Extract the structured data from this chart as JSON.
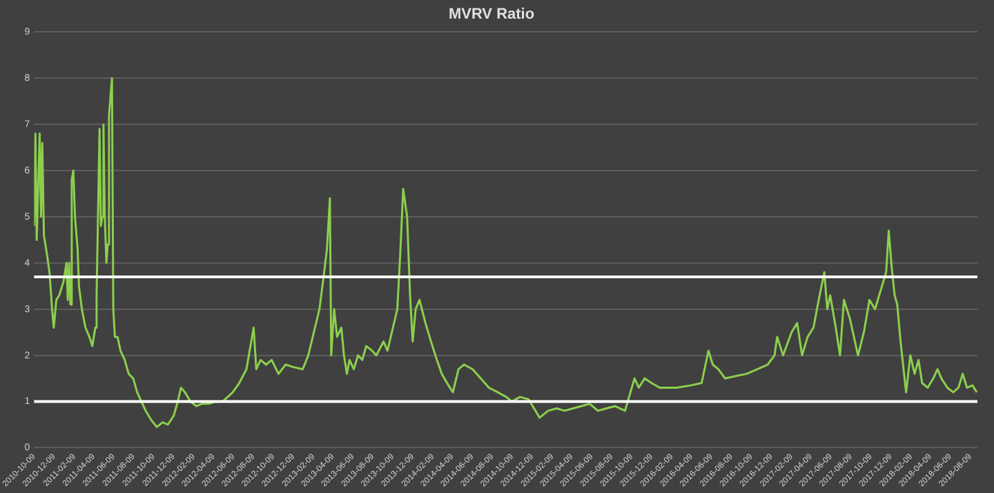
{
  "chart_data": {
    "type": "line",
    "title": "MVRV Ratio",
    "x": [
      "2010-10-09",
      "2010-10-13",
      "2010-10-17",
      "2010-10-26",
      "2010-10-30",
      "2010-11-03",
      "2010-11-08",
      "2010-11-17",
      "2010-11-25",
      "2010-12-03",
      "2010-12-08",
      "2010-12-16",
      "2010-12-25",
      "2011-01-07",
      "2011-01-16",
      "2011-01-20",
      "2011-01-24",
      "2011-01-28",
      "2011-02-01",
      "2011-02-06",
      "2011-02-11",
      "2011-02-19",
      "2011-02-23",
      "2011-03-04",
      "2011-03-15",
      "2011-03-27",
      "2011-04-05",
      "2011-04-14",
      "2011-04-18",
      "2011-04-27",
      "2011-05-01",
      "2011-05-05",
      "2011-05-09",
      "2011-05-13",
      "2011-05-18",
      "2011-05-22",
      "2011-05-26",
      "2011-06-04",
      "2011-06-08",
      "2011-06-13",
      "2011-06-21",
      "2011-06-30",
      "2011-07-13",
      "2011-07-25",
      "2011-08-08",
      "2011-08-20",
      "2011-09-02",
      "2011-09-15",
      "2011-10-02",
      "2011-10-19",
      "2011-11-06",
      "2011-11-22",
      "2011-12-10",
      "2011-12-22",
      "2012-01-01",
      "2012-01-13",
      "2012-01-30",
      "2012-02-17",
      "2012-03-05",
      "2012-03-25",
      "2012-04-16",
      "2012-05-07",
      "2012-06-07",
      "2012-06-27",
      "2012-07-19",
      "2012-08-10",
      "2012-08-18",
      "2012-08-31",
      "2012-09-17",
      "2012-10-04",
      "2012-10-25",
      "2012-11-16",
      "2012-12-07",
      "2013-01-07",
      "2013-01-24",
      "2013-02-10",
      "2013-02-27",
      "2013-03-10",
      "2013-03-22",
      "2013-03-31",
      "2013-04-04",
      "2013-04-13",
      "2013-04-22",
      "2013-05-05",
      "2013-05-13",
      "2013-05-22",
      "2013-05-30",
      "2013-06-12",
      "2013-06-25",
      "2013-07-08",
      "2013-07-20",
      "2013-08-07",
      "2013-08-20",
      "2013-09-11",
      "2013-09-23",
      "2013-10-23",
      "2013-11-01",
      "2013-11-10",
      "2013-11-22",
      "2013-12-01",
      "2013-12-09",
      "2013-12-18",
      "2013-12-30",
      "2014-01-17",
      "2014-02-03",
      "2014-02-21",
      "2014-03-08",
      "2014-03-24",
      "2014-04-11",
      "2014-04-28",
      "2014-05-15",
      "2014-06-10",
      "2014-07-05",
      "2014-07-30",
      "2014-08-26",
      "2014-09-21",
      "2014-10-08",
      "2014-11-02",
      "2014-11-28",
      "2014-12-15",
      "2015-01-01",
      "2015-01-27",
      "2015-02-22",
      "2015-03-18",
      "2015-04-13",
      "2015-05-08",
      "2015-06-03",
      "2015-06-28",
      "2015-07-24",
      "2015-08-19",
      "2015-09-19",
      "2015-10-18",
      "2015-10-31",
      "2015-11-18",
      "2015-12-09",
      "2016-01-03",
      "2016-01-12",
      "2016-02-24",
      "2016-04-07",
      "2016-05-10",
      "2016-05-31",
      "2016-06-13",
      "2016-06-30",
      "2016-07-21",
      "2016-08-21",
      "2016-09-25",
      "2016-10-28",
      "2016-11-28",
      "2016-12-19",
      "2016-12-27",
      "2017-01-14",
      "2017-02-09",
      "2017-02-26",
      "2017-03-13",
      "2017-03-30",
      "2017-04-17",
      "2017-05-03",
      "2017-05-20",
      "2017-05-29",
      "2017-06-07",
      "2017-06-24",
      "2017-07-07",
      "2017-07-19",
      "2017-08-06",
      "2017-08-31",
      "2017-09-18",
      "2017-10-05",
      "2017-10-22",
      "2017-11-08",
      "2017-11-25",
      "2017-12-03",
      "2017-12-12",
      "2017-12-21",
      "2017-12-29",
      "2018-01-08",
      "2018-01-25",
      "2018-02-07",
      "2018-02-20",
      "2018-03-04",
      "2018-03-15",
      "2018-04-01",
      "2018-04-18",
      "2018-05-01",
      "2018-05-13",
      "2018-05-31",
      "2018-06-18",
      "2018-07-04",
      "2018-07-17",
      "2018-07-30",
      "2018-08-16",
      "2018-08-29"
    ],
    "series": [
      {
        "color": "#8ccf4d",
        "values": [
          4.8,
          6.8,
          4.5,
          6.8,
          5.0,
          6.6,
          4.6,
          4.2,
          3.8,
          3.0,
          2.6,
          3.2,
          3.3,
          3.6,
          4.0,
          3.2,
          4.0,
          3.1,
          5.8,
          6.0,
          5.0,
          4.3,
          3.5,
          3.0,
          2.6,
          2.4,
          2.2,
          2.6,
          3.3,
          6.9,
          4.8,
          5.0,
          7.0,
          5.0,
          4.0,
          4.4,
          7.2,
          8.0,
          3.0,
          2.4,
          2.4,
          2.1,
          1.9,
          1.6,
          1.5,
          1.2,
          1.0,
          0.8,
          0.6,
          0.45,
          0.55,
          0.5,
          0.7,
          1.0,
          1.3,
          1.2,
          1.0,
          0.9,
          0.95,
          0.95,
          1.0,
          1.0,
          1.2,
          1.4,
          1.7,
          2.6,
          1.7,
          1.9,
          1.8,
          1.9,
          1.6,
          1.8,
          1.75,
          1.7,
          2.0,
          2.5,
          3.0,
          3.6,
          4.3,
          5.4,
          2.0,
          3.0,
          2.4,
          2.6,
          2.0,
          1.6,
          1.9,
          1.7,
          2.0,
          1.9,
          2.2,
          2.1,
          2.0,
          2.3,
          2.1,
          3.0,
          4.2,
          5.6,
          5.0,
          3.3,
          2.3,
          3.0,
          3.2,
          2.7,
          2.3,
          1.9,
          1.6,
          1.4,
          1.2,
          1.7,
          1.8,
          1.7,
          1.5,
          1.3,
          1.2,
          1.1,
          1.0,
          1.1,
          1.05,
          0.85,
          0.65,
          0.8,
          0.85,
          0.8,
          0.85,
          0.9,
          0.95,
          0.8,
          0.85,
          0.9,
          0.8,
          1.5,
          1.3,
          1.5,
          1.4,
          1.3,
          1.3,
          1.3,
          1.35,
          1.4,
          2.1,
          1.8,
          1.7,
          1.5,
          1.55,
          1.6,
          1.7,
          1.8,
          2.0,
          2.4,
          2.0,
          2.5,
          2.7,
          2.0,
          2.4,
          2.6,
          3.2,
          3.8,
          3.0,
          3.3,
          2.6,
          2.0,
          3.2,
          2.8,
          2.0,
          2.5,
          3.2,
          3.0,
          3.4,
          3.8,
          4.7,
          3.9,
          3.3,
          3.1,
          2.3,
          1.2,
          2.0,
          1.6,
          1.9,
          1.4,
          1.3,
          1.5,
          1.7,
          1.5,
          1.3,
          1.2,
          1.3,
          1.6,
          1.3,
          1.35,
          1.2
        ]
      }
    ],
    "xlim": [
      "2010-10-09",
      "2018-08-31"
    ],
    "xticks": [
      "2010-10-09",
      "2010-12-09",
      "2011-02-09",
      "2011-04-09",
      "2011-06-09",
      "2011-08-09",
      "2011-10-09",
      "2011-12-09",
      "2012-02-09",
      "2012-04-09",
      "2012-06-09",
      "2012-08-09",
      "2012-10-09",
      "2012-12-09",
      "2013-02-09",
      "2013-04-09",
      "2013-06-09",
      "2013-08-09",
      "2013-10-09",
      "2013-12-09",
      "2014-02-09",
      "2014-04-09",
      "2014-06-09",
      "2014-08-09",
      "2014-10-09",
      "2014-12-09",
      "2015-02-09",
      "2015-04-09",
      "2015-06-09",
      "2015-08-09",
      "2015-10-09",
      "2015-12-09",
      "2016-02-09",
      "2016-04-09",
      "2016-06-09",
      "2016-08-09",
      "2016-10-09",
      "2016-12-09",
      "2017-02-09",
      "2017-04-09",
      "2017-06-09",
      "2017-08-09",
      "2017-10-09",
      "2017-12-09",
      "2018-02-09",
      "2018-04-09",
      "2018-06-09",
      "2018-08-09"
    ],
    "ylim": [
      0,
      9
    ],
    "yticks": [
      0,
      1,
      2,
      3,
      4,
      5,
      6,
      7,
      8,
      9
    ],
    "grid": "y",
    "legend": false,
    "marker": "none",
    "line_style": "solid",
    "ref_lines": [
      {
        "axis": "y",
        "value": 3.7,
        "color": "#ffffff"
      },
      {
        "axis": "y",
        "value": 1.0,
        "color": "#ffffff"
      }
    ]
  }
}
